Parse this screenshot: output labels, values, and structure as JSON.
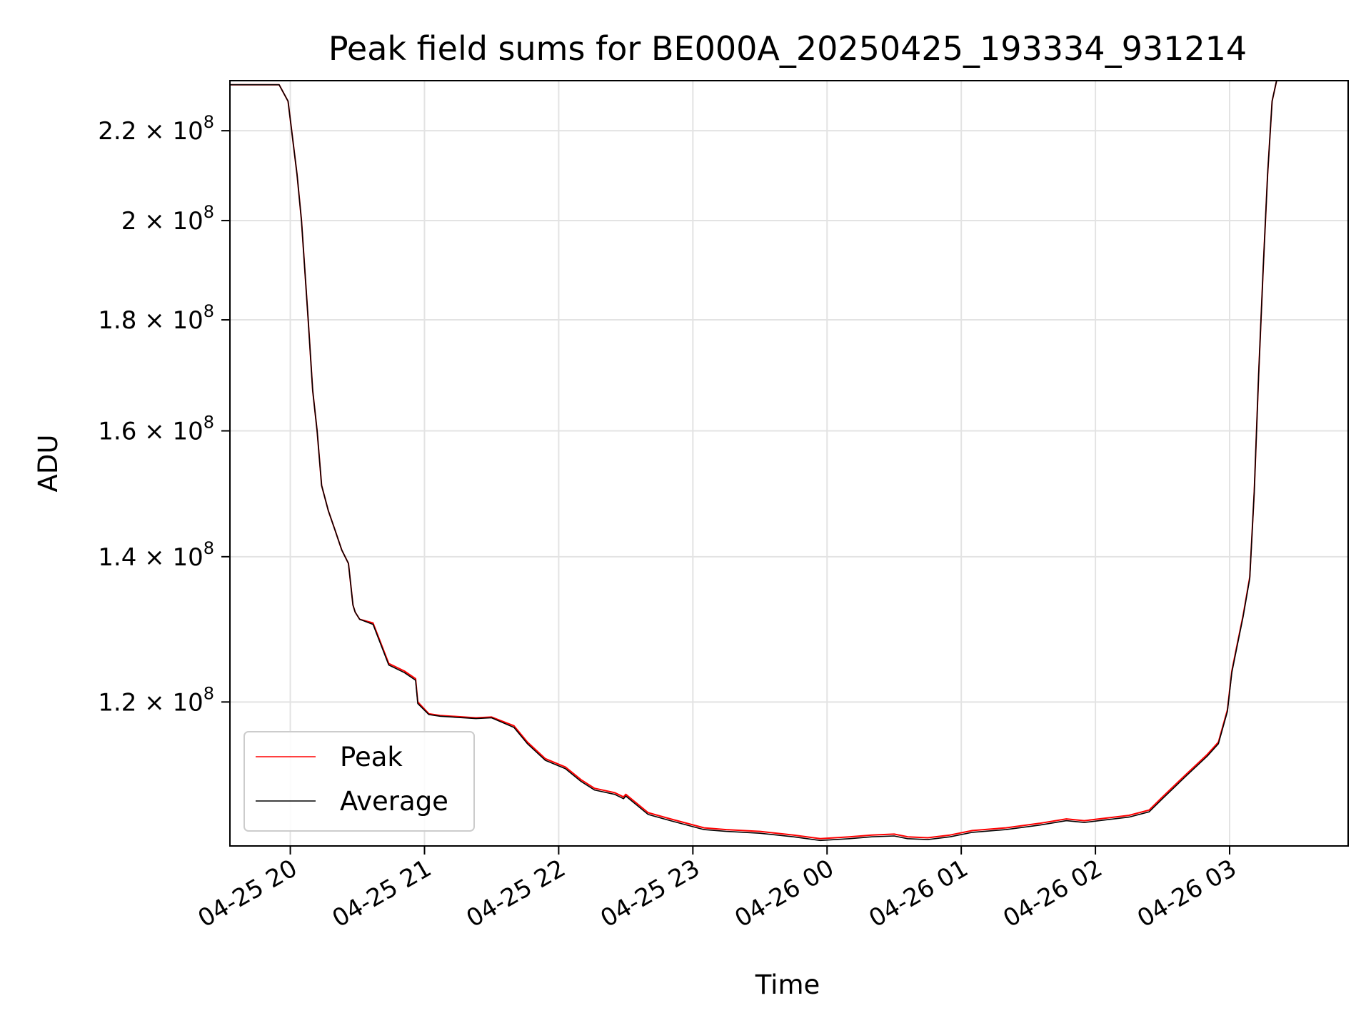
{
  "chart_data": {
    "type": "line",
    "title": "Peak field sums for BE000A_20250425_193334_931214",
    "xlabel": "Time",
    "ylabel": "ADU",
    "y_scale": "log",
    "xlim": [
      "2025-04-25 19:33",
      "2025-04-26 03:53"
    ],
    "ylim": [
      103000000,
      232000000
    ],
    "grid": true,
    "legend_position": "lower-left",
    "x_ticks": [
      {
        "t": "2025-04-25 20:00",
        "label": "04-25 20"
      },
      {
        "t": "2025-04-25 21:00",
        "label": "04-25 21"
      },
      {
        "t": "2025-04-25 22:00",
        "label": "04-25 22"
      },
      {
        "t": "2025-04-25 23:00",
        "label": "04-25 23"
      },
      {
        "t": "2025-04-26 00:00",
        "label": "04-26 00"
      },
      {
        "t": "2025-04-26 01:00",
        "label": "04-26 01"
      },
      {
        "t": "2025-04-26 02:00",
        "label": "04-26 02"
      },
      {
        "t": "2025-04-26 03:00",
        "label": "04-26 03"
      }
    ],
    "y_ticks": [
      {
        "value": 120000000,
        "mantissa": "1.2",
        "base": "10",
        "exponent": "8"
      },
      {
        "value": 140000000,
        "mantissa": "1.4",
        "base": "10",
        "exponent": "8"
      },
      {
        "value": 160000000,
        "mantissa": "1.6",
        "base": "10",
        "exponent": "8"
      },
      {
        "value": 180000000,
        "mantissa": "1.8",
        "base": "10",
        "exponent": "8"
      },
      {
        "value": 200000000,
        "mantissa": "2",
        "base": "10",
        "exponent": "8"
      },
      {
        "value": 220000000,
        "mantissa": "2.2",
        "base": "10",
        "exponent": "8"
      }
    ],
    "x": [
      "2025-04-25 19:33",
      "2025-04-25 19:55",
      "2025-04-25 19:59",
      "2025-04-25 20:03",
      "2025-04-25 20:05",
      "2025-04-25 20:08",
      "2025-04-25 20:10",
      "2025-04-25 20:12",
      "2025-04-25 20:14",
      "2025-04-25 20:17",
      "2025-04-25 20:20",
      "2025-04-25 20:23",
      "2025-04-25 20:26",
      "2025-04-25 20:28",
      "2025-04-25 20:29",
      "2025-04-25 20:31",
      "2025-04-25 20:37",
      "2025-04-25 20:44",
      "2025-04-25 20:51",
      "2025-04-25 20:56",
      "2025-04-25 20:57",
      "2025-04-25 21:02",
      "2025-04-25 21:07",
      "2025-04-25 21:23",
      "2025-04-25 21:30",
      "2025-04-25 21:40",
      "2025-04-25 21:46",
      "2025-04-25 21:54",
      "2025-04-25 22:03",
      "2025-04-25 22:10",
      "2025-04-25 22:16",
      "2025-04-25 22:25",
      "2025-04-25 22:29",
      "2025-04-25 22:30",
      "2025-04-25 22:40",
      "2025-04-25 22:50",
      "2025-04-25 22:56",
      "2025-04-25 23:05",
      "2025-04-25 23:15",
      "2025-04-25 23:30",
      "2025-04-25 23:45",
      "2025-04-25 23:57",
      "2025-04-26 00:10",
      "2025-04-26 00:20",
      "2025-04-26 00:30",
      "2025-04-26 00:36",
      "2025-04-26 00:45",
      "2025-04-26 00:55",
      "2025-04-26 01:05",
      "2025-04-26 01:20",
      "2025-04-26 01:35",
      "2025-04-26 01:47",
      "2025-04-26 01:55",
      "2025-04-26 02:05",
      "2025-04-26 02:15",
      "2025-04-26 02:24",
      "2025-04-26 02:30",
      "2025-04-26 02:40",
      "2025-04-26 02:50",
      "2025-04-26 02:55",
      "2025-04-26 02:59",
      "2025-04-26 03:01",
      "2025-04-26 03:03",
      "2025-04-26 03:06",
      "2025-04-26 03:09",
      "2025-04-26 03:11",
      "2025-04-26 03:13",
      "2025-04-26 03:15",
      "2025-04-26 03:17",
      "2025-04-26 03:19",
      "2025-04-26 03:21",
      "2025-04-26 03:25"
    ],
    "series": [
      {
        "name": "Peak",
        "color": "#ff0000",
        "values": [
          231000000,
          231000000,
          227000000,
          210000000,
          200000000,
          180000000,
          167000000,
          160000000,
          151000000,
          147000000,
          144000000,
          141000000,
          139000000,
          133000000,
          132000000,
          131000000,
          130500000,
          125000000,
          124000000,
          123000000,
          120000000,
          118500000,
          118300000,
          118000000,
          118100000,
          117000000,
          115000000,
          113000000,
          112000000,
          110500000,
          109500000,
          109000000,
          108500000,
          108800000,
          106700000,
          106000000,
          105600000,
          105000000,
          104800000,
          104600000,
          104200000,
          103800000,
          104000000,
          104200000,
          104300000,
          104000000,
          103900000,
          104200000,
          104700000,
          105000000,
          105500000,
          106000000,
          105800000,
          106100000,
          106400000,
          107000000,
          108500000,
          111000000,
          113500000,
          115000000,
          119000000,
          124000000,
          127000000,
          131500000,
          137000000,
          150000000,
          170000000,
          190000000,
          210000000,
          227000000,
          232000000,
          232000000
        ]
      },
      {
        "name": "Average",
        "color": "#000000",
        "values": [
          231000000,
          231000000,
          227000000,
          210000000,
          200000000,
          180000000,
          167000000,
          160000000,
          151000000,
          147000000,
          144000000,
          141000000,
          139000000,
          133000000,
          132000000,
          131000000,
          130300000,
          124800000,
          123800000,
          122800000,
          119800000,
          118400000,
          118200000,
          117900000,
          118000000,
          116800000,
          114800000,
          112800000,
          111800000,
          110300000,
          109300000,
          108800000,
          108300000,
          108600000,
          106500000,
          105800000,
          105400000,
          104800000,
          104600000,
          104400000,
          104000000,
          103600000,
          103800000,
          104000000,
          104100000,
          103800000,
          103700000,
          104000000,
          104500000,
          104800000,
          105300000,
          105800000,
          105600000,
          105900000,
          106200000,
          106800000,
          108300000,
          110800000,
          113300000,
          114800000,
          118800000,
          123800000,
          126800000,
          131300000,
          136800000,
          150000000,
          170000000,
          190000000,
          210000000,
          227000000,
          232000000,
          232000000
        ]
      }
    ]
  }
}
